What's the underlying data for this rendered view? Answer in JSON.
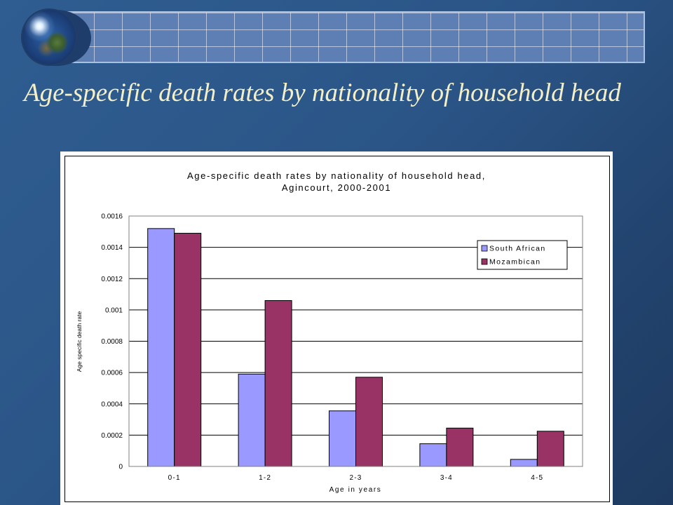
{
  "slide": {
    "title": "Age-specific death rates by nationality of household head"
  },
  "chart_data": {
    "type": "bar",
    "title_lines": [
      "Age-specific death rates by nationality of household head,",
      "Agincourt, 2000-2001"
    ],
    "categories": [
      "0-1",
      "1-2",
      "2-3",
      "3-4",
      "4-5"
    ],
    "series": [
      {
        "name": "South African",
        "color": "#9999ff",
        "values": [
          0.00152,
          0.00059,
          0.000355,
          0.000145,
          4.5e-05
        ]
      },
      {
        "name": "Mozambican",
        "color": "#993366",
        "values": [
          0.00149,
          0.00106,
          0.00057,
          0.000245,
          0.000225
        ]
      }
    ],
    "xlabel": "Age in years",
    "ylabel": "Age specific death rate",
    "ylim": [
      0,
      0.0016
    ],
    "yticks": [
      "0",
      "0.0002",
      "0.0004",
      "0.0006",
      "0.0008",
      "0.001",
      "0.0012",
      "0.0014",
      "0.0016"
    ],
    "grid": true,
    "legend_position": "top-right"
  }
}
